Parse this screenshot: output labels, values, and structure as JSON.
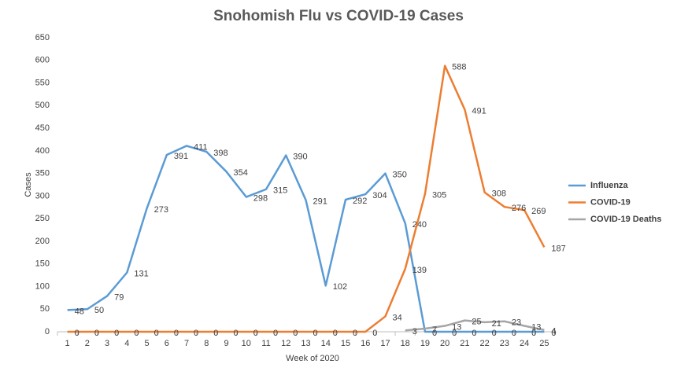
{
  "chart_data": {
    "type": "line",
    "title": "Snohomish Flu vs COVID-19 Cases",
    "x_label": "Week of 2020",
    "y_label": "Cases",
    "categories": [
      "1",
      "2",
      "3",
      "4",
      "5",
      "6",
      "7",
      "8",
      "9",
      "10",
      "11",
      "12",
      "13",
      "14",
      "15",
      "16",
      "17",
      "18",
      "19",
      "20",
      "21",
      "22",
      "23",
      "24",
      "25"
    ],
    "series": [
      {
        "name": "Influenza",
        "color": "#5b9bd5",
        "values": [
          48,
          50,
          79,
          131,
          273,
          391,
          411,
          398,
          354,
          298,
          315,
          390,
          291,
          102,
          292,
          304,
          350,
          240,
          0,
          0,
          0,
          0,
          0,
          0,
          0
        ]
      },
      {
        "name": "COVID-19",
        "color": "#ed7d31",
        "values": [
          0,
          0,
          0,
          0,
          0,
          0,
          0,
          0,
          0,
          0,
          0,
          0,
          0,
          0,
          0,
          0,
          34,
          139,
          305,
          588,
          491,
          308,
          276,
          269,
          187
        ]
      },
      {
        "name": "COVID-19 Deaths",
        "color": "#a5a5a5",
        "values": [
          null,
          null,
          null,
          null,
          null,
          null,
          null,
          null,
          null,
          null,
          null,
          null,
          null,
          null,
          null,
          null,
          null,
          3,
          7,
          13,
          25,
          21,
          23,
          13,
          4
        ]
      }
    ],
    "ylim": [
      0,
      650
    ],
    "yticks": [
      0,
      50,
      100,
      150,
      200,
      250,
      300,
      350,
      400,
      450,
      500,
      550,
      600,
      650
    ],
    "legend": "right",
    "grid": false
  }
}
